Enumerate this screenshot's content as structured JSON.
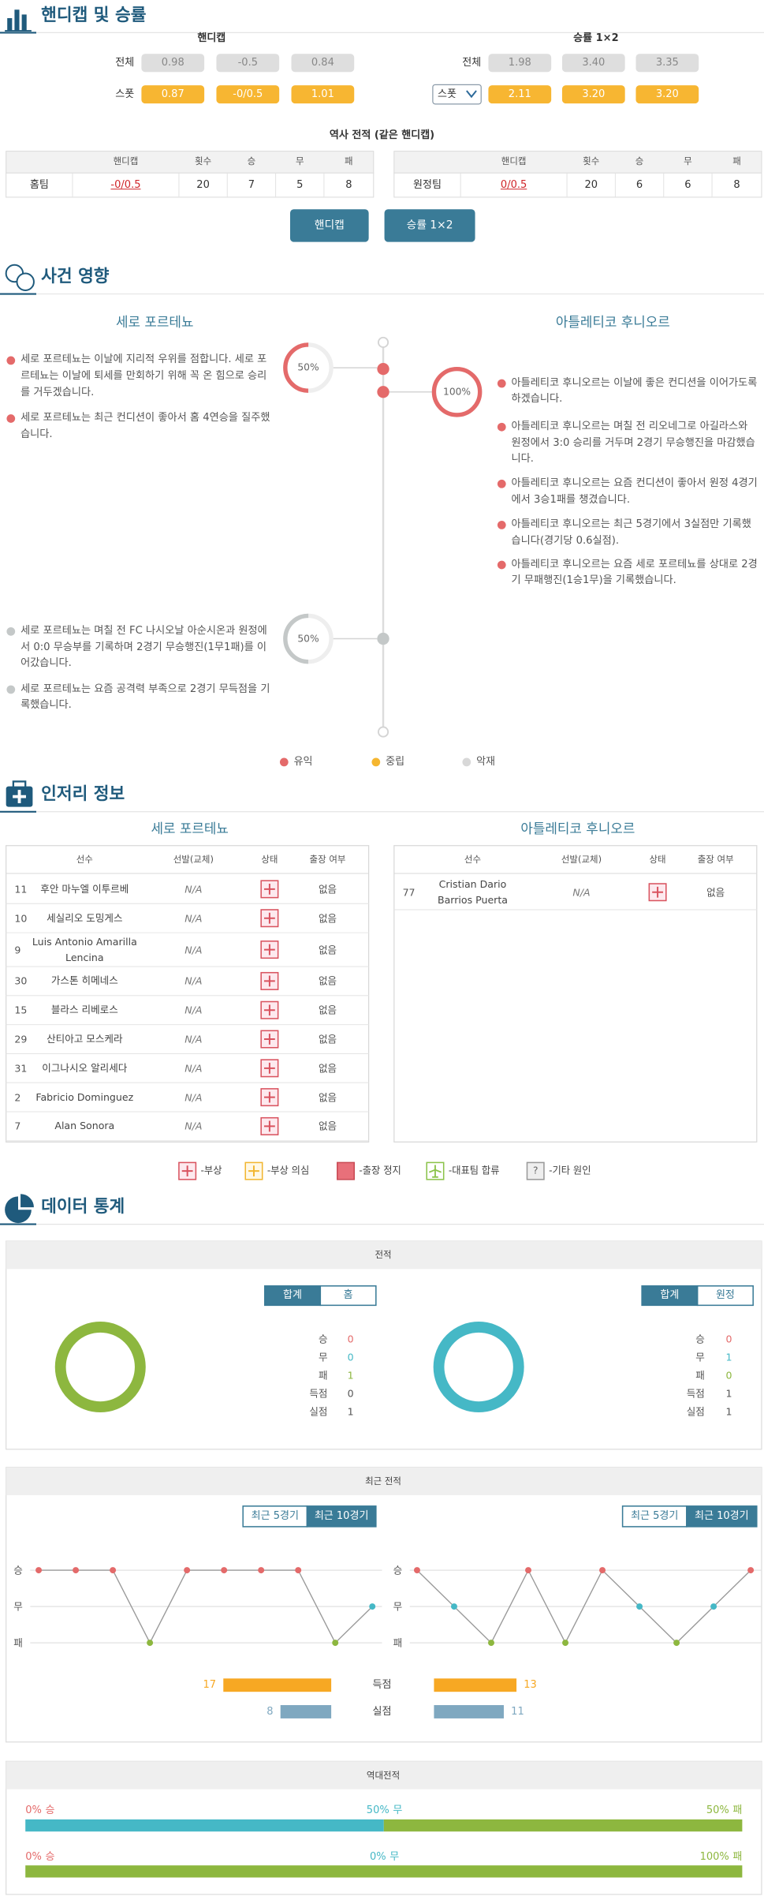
{
  "odds": {
    "title": "핸디캡 및 승률",
    "handicap": {
      "title": "핸디캡",
      "rows": [
        {
          "label": "전체",
          "values": [
            "0.98",
            "-0.5",
            "0.84"
          ]
        },
        {
          "label": "스폿",
          "values": [
            "0.87",
            "-0/0.5",
            "1.01"
          ]
        }
      ]
    },
    "winrate": {
      "title": "승률 1×2",
      "rows": [
        {
          "label": "전체",
          "values": [
            "1.98",
            "3.40",
            "3.35"
          ]
        },
        {
          "label": "스폿",
          "values": [
            "2.11",
            "3.20",
            "3.20"
          ]
        }
      ]
    },
    "history": {
      "title": "역사 전적 (같은 핸디캡)",
      "headers": [
        "핸디캡",
        "횟수",
        "승",
        "무",
        "패"
      ],
      "teams": [
        {
          "label": "홈팀",
          "cells": [
            "-0/0.5",
            "20",
            "7",
            "5",
            "8"
          ]
        },
        {
          "label": "원정팀",
          "cells": [
            "0/0.5",
            "20",
            "6",
            "6",
            "8"
          ]
        }
      ]
    },
    "buttons": [
      "핸디캡",
      "승률 1×2"
    ]
  },
  "impact": {
    "title": "사건 영향",
    "home": {
      "name": "세로 포르테뇨",
      "positive": [
        "세로 포르테뇨는 이날에 지리적 우위를 점합니다. 세로 포르테뇨는 이날에 퇴세를 만회하기 위해 꼭 온 힘으로 승리를 거두겠습니다.",
        "세로 포르테뇨는 최근 컨디션이 좋아서 홈 4연승을 질주했습니다."
      ],
      "neutral": [
        "세로 포르테뇨는 며칠 전 FC 나시오날 아순시온과 원정에서 0:0 무승부를 기록하며 2경기 무승행진(1무1패)를 이어갔습니다.",
        "세로 포르테뇨는 요즘 공격력 부족으로 2경기 무득점을 기록했습니다."
      ]
    },
    "away": {
      "name": "아틀레티코 후니오르",
      "positive": [
        "아틀레티코 후니오르는 이날에 좋은 컨디션을 이어가도록 하겠습니다.",
        "아틀레티코 후니오르는 며칠 전 리오네그로 아길라스와 원정에서 3:0 승리를 거두며 2경기 무승행진을 마감했습니다.",
        "아틀레티코 후니오르는 요즘 컨디션이 좋아서 원정 4경기에서 3승1패를 챙겼습니다.",
        "아틀레티코 후니오르는 최근 5경기에서 3실점만 기록했습니다(경기당 0.6실점).",
        "아틀레티코 후니오르는 요즘 세로 포르테뇨를 상대로 2경기 무패행진(1승1무)을 기록했습니다."
      ]
    },
    "gauges": {
      "values": [
        50,
        100,
        50
      ],
      "value_labels": [
        "50%",
        "100%",
        "50%"
      ],
      "colors": [
        "#e46a6a",
        "#e46a6a",
        "#c4c8c8"
      ]
    },
    "legend": [
      {
        "label": "유익",
        "color": "#e46a6a"
      },
      {
        "label": "중립",
        "color": "#f5b630"
      },
      {
        "label": "악재",
        "color": "#d8d8d8"
      }
    ]
  },
  "injury": {
    "title": "인저리 정보",
    "headers": [
      "선수",
      "선발(교체)",
      "상태",
      "출장 여부"
    ],
    "home": {
      "name": "세로 포르테뇨",
      "rows": [
        [
          "11",
          "후안 마누엘 이투르베",
          "N/A",
          "없음"
        ],
        [
          "10",
          "세실리오 도밍게스",
          "N/A",
          "없음"
        ],
        [
          "9",
          "Luis Antonio Amarilla Lencina",
          "N/A",
          "없음"
        ],
        [
          "30",
          "가스톤 히메네스",
          "N/A",
          "없음"
        ],
        [
          "15",
          "블라스 리베로스",
          "N/A",
          "없음"
        ],
        [
          "29",
          "산티아고 모스케라",
          "N/A",
          "없음"
        ],
        [
          "31",
          "이그나시오 알리세다",
          "N/A",
          "없음"
        ],
        [
          "2",
          "Fabricio Dominguez",
          "N/A",
          "없음"
        ],
        [
          "7",
          "Alan Sonora",
          "N/A",
          "없음"
        ]
      ]
    },
    "away": {
      "name": "아틀레티코 후니오르",
      "rows": [
        [
          "77",
          "Cristian Dario Barrios Puerta",
          "N/A",
          "없음"
        ]
      ]
    },
    "legend": [
      {
        "label": "-부상"
      },
      {
        "label": "-부상 의심"
      },
      {
        "label": "-출장 정지"
      },
      {
        "label": "-대표팀 합류"
      },
      {
        "icon": "?",
        "label": "-기타 원인"
      }
    ]
  },
  "stats": {
    "title": "데이터 통계",
    "colors": [
      "#e46a6a",
      "#45b8c6",
      "#8db73f"
    ],
    "record": {
      "title": "전적",
      "tabs_home": [
        "합계",
        "홈"
      ],
      "tabs_away": [
        "합계",
        "원정"
      ],
      "labels": [
        "승",
        "무",
        "패",
        "득점",
        "실점"
      ],
      "home": [
        0,
        0,
        1,
        0,
        1
      ],
      "away": [
        0,
        1,
        0,
        1,
        1
      ]
    },
    "recent": {
      "title": "최근 전적",
      "tabs": [
        "최근 5경기",
        "최근 10경기"
      ],
      "ylim": [
        -1,
        1
      ],
      "yticks": [
        {
          "value": 1,
          "label": "승"
        },
        {
          "value": 0,
          "label": "무"
        },
        {
          "value": -1,
          "label": "패"
        }
      ],
      "home": [
        1,
        1,
        1,
        -1,
        1,
        1,
        1,
        1,
        -1,
        0
      ],
      "away": [
        1,
        0,
        -1,
        1,
        -1,
        1,
        0,
        -1,
        0,
        1
      ],
      "bars": {
        "labels": [
          "득점",
          "실점"
        ],
        "home": [
          17,
          8
        ],
        "away": [
          13,
          11
        ],
        "colors": [
          "#f7a823",
          "#7fa8c0"
        ]
      }
    },
    "h2h": {
      "title": "역대전적",
      "labels": [
        "승",
        "무",
        "패"
      ],
      "rows": [
        {
          "values": [
            0,
            50,
            50
          ],
          "value_labels": [
            "0%",
            "50%",
            "50%"
          ]
        },
        {
          "values": [
            0,
            0,
            100
          ],
          "value_labels": [
            "0%",
            "0%",
            "100%"
          ]
        }
      ]
    }
  }
}
